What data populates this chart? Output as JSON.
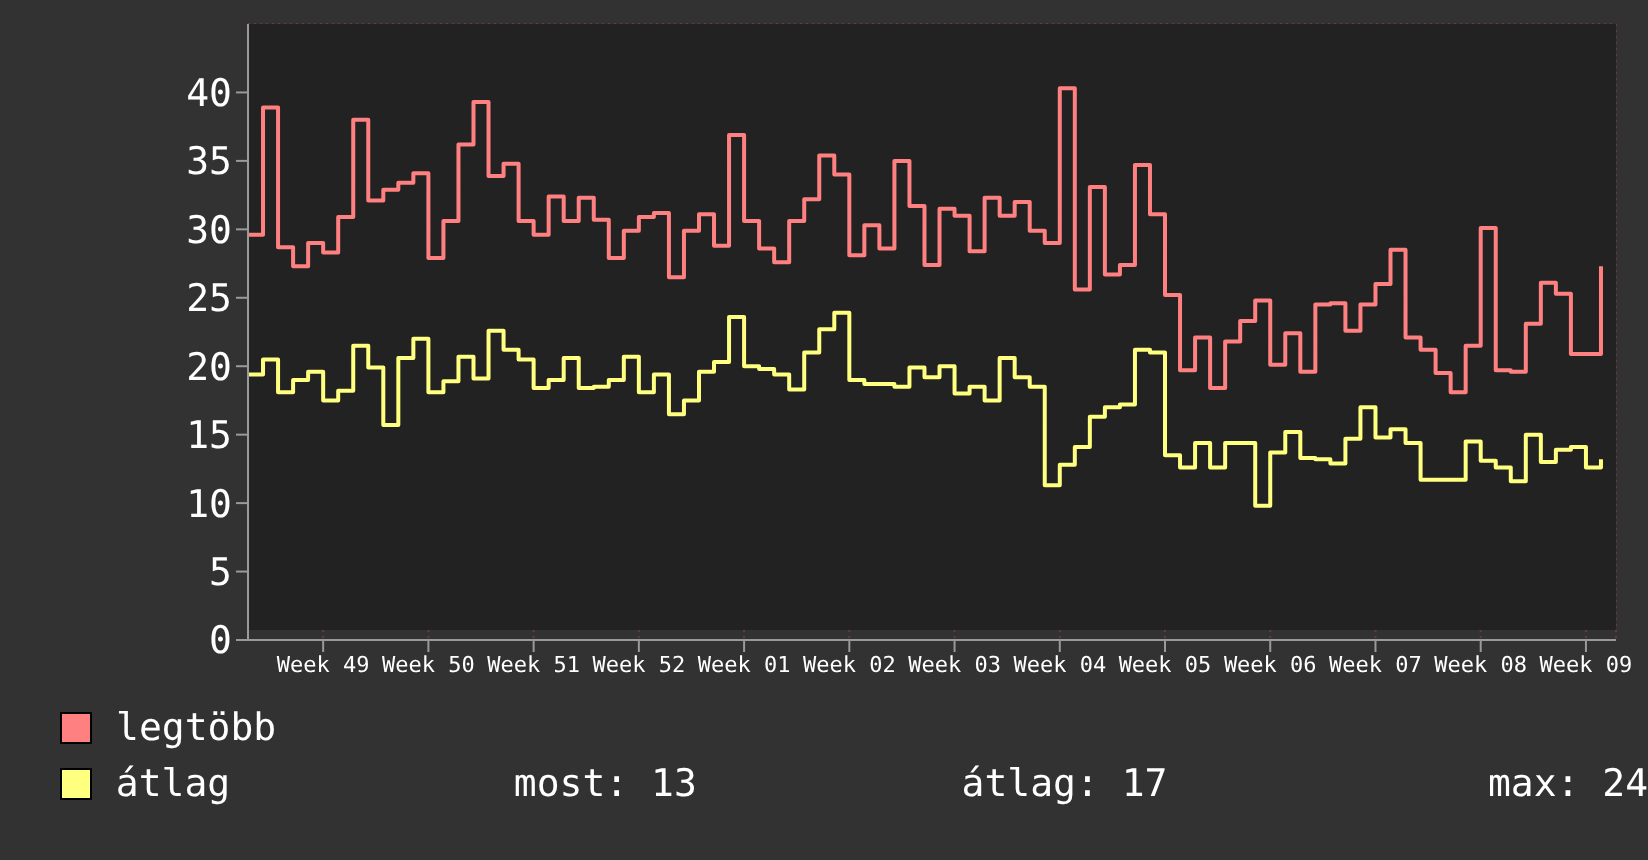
{
  "chart_data": {
    "type": "step",
    "categories": [
      null,
      null,
      null,
      null,
      null,
      "Week 49",
      null,
      null,
      null,
      null,
      null,
      null,
      "Week 50",
      null,
      null,
      null,
      null,
      null,
      null,
      "Week 51",
      null,
      null,
      null,
      null,
      null,
      null,
      "Week 52",
      null,
      null,
      null,
      null,
      null,
      null,
      "Week 01",
      null,
      null,
      null,
      null,
      null,
      null,
      "Week 02",
      null,
      null,
      null,
      null,
      null,
      null,
      "Week 03",
      null,
      null,
      null,
      null,
      null,
      null,
      "Week 04",
      null,
      null,
      null,
      null,
      null,
      null,
      "Week 05",
      null,
      null,
      null,
      null,
      null,
      null,
      "Week 06",
      null,
      null,
      null,
      null,
      null,
      null,
      "Week 07",
      null,
      null,
      null,
      null,
      null,
      null,
      "Week 08",
      null,
      null,
      null,
      null,
      null,
      null,
      "Week 09",
      null
    ],
    "series": [
      {
        "name": "legtöbb",
        "color": "#ff8080",
        "values": [
          29.6,
          38.9,
          28.7,
          27.3,
          29.0,
          28.3,
          30.9,
          38.0,
          32.1,
          32.9,
          33.4,
          34.1,
          27.9,
          30.6,
          36.2,
          39.3,
          33.9,
          34.8,
          30.6,
          29.6,
          32.4,
          30.6,
          32.3,
          30.7,
          27.9,
          29.9,
          30.9,
          31.2,
          26.5,
          29.9,
          31.1,
          28.8,
          36.9,
          30.6,
          28.6,
          27.6,
          30.6,
          32.2,
          35.4,
          34.0,
          28.1,
          30.3,
          28.6,
          35.0,
          31.7,
          27.4,
          31.5,
          31.0,
          28.4,
          32.3,
          31.0,
          32.0,
          29.9,
          29.0,
          40.3,
          25.6,
          33.1,
          26.7,
          27.4,
          34.7,
          31.1,
          25.2,
          19.7,
          22.1,
          18.4,
          21.8,
          23.3,
          24.8,
          20.1,
          22.4,
          19.6,
          24.5,
          24.6,
          22.6,
          24.5,
          26.0,
          28.5,
          22.1,
          21.2,
          19.5,
          18.1,
          21.5,
          30.1,
          19.7,
          19.6,
          23.1,
          26.1,
          25.3,
          20.9,
          20.9,
          27.3
        ]
      },
      {
        "name": "átlag",
        "color": "#ffff80",
        "values": [
          19.4,
          20.5,
          18.1,
          19.0,
          19.6,
          17.5,
          18.2,
          21.5,
          19.9,
          15.7,
          20.6,
          22.0,
          18.1,
          18.9,
          20.7,
          19.1,
          22.6,
          21.2,
          20.5,
          18.4,
          19.0,
          20.6,
          18.4,
          18.5,
          19.0,
          20.7,
          18.1,
          19.4,
          16.5,
          17.5,
          19.6,
          20.3,
          23.6,
          20.0,
          19.8,
          19.4,
          18.3,
          21.0,
          22.7,
          23.9,
          19.0,
          18.7,
          18.7,
          18.5,
          19.9,
          19.2,
          20.0,
          18.0,
          18.5,
          17.5,
          20.6,
          19.2,
          18.5,
          11.3,
          12.8,
          14.1,
          16.3,
          17.0,
          17.2,
          21.2,
          21.0,
          13.5,
          12.6,
          14.4,
          12.6,
          14.4,
          14.4,
          9.8,
          13.7,
          15.2,
          13.3,
          13.2,
          12.9,
          14.7,
          17.0,
          14.8,
          15.4,
          14.4,
          11.7,
          11.7,
          11.7,
          14.5,
          13.1,
          12.6,
          11.6,
          15.0,
          13.0,
          13.9,
          14.1,
          12.6,
          13.2
        ]
      }
    ],
    "ylim": [
      0,
      45
    ],
    "yticks": [
      0,
      5,
      10,
      15,
      20,
      25,
      30,
      35,
      40
    ],
    "grid": true,
    "legend": "bottom left",
    "annotations": [
      "most: 13",
      "átlag: 17",
      "max: 24"
    ]
  }
}
